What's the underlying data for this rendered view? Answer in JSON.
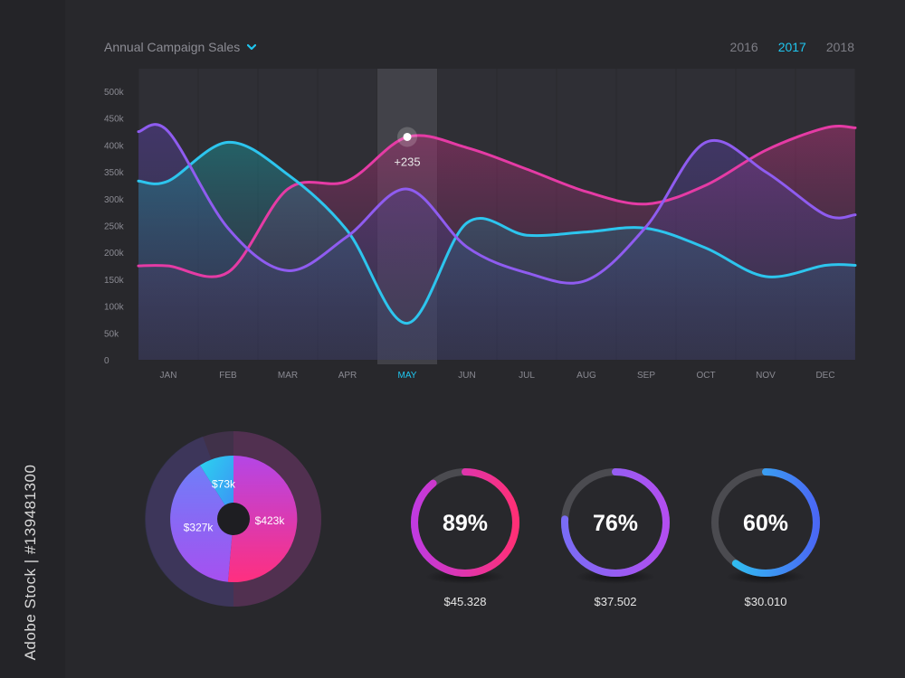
{
  "side_credit": "Adobe Stock | #139481300",
  "header": {
    "title": "Annual Campaign Sales",
    "years": [
      "2016",
      "2017",
      "2018"
    ],
    "active_year": "2017"
  },
  "colors": {
    "background": "#28282c",
    "accent": "#1fc6ef",
    "magenta": "#e53ba5",
    "purple": "#8f5cf0",
    "blue": "#3aa2f5",
    "cyan": "#2dc5ee"
  },
  "chart_data": [
    {
      "type": "line",
      "title": "Annual Campaign Sales",
      "categories": [
        "JAN",
        "FEB",
        "MAR",
        "APR",
        "MAY",
        "JUN",
        "JUL",
        "AUG",
        "SEP",
        "OCT",
        "NOV",
        "DEC"
      ],
      "y_ticks": [
        "0",
        "50k",
        "100k",
        "150k",
        "200k",
        "250k",
        "300k",
        "350k",
        "400k",
        "450k",
        "500k"
      ],
      "ylim": [
        0,
        500000
      ],
      "series": [
        {
          "color": "#e53ba5",
          "values": [
            175000,
            163000,
            318000,
            333000,
            415000,
            395000,
            355000,
            313000,
            290000,
            325000,
            390000,
            432000
          ]
        },
        {
          "color": "#2dc5ee",
          "values": [
            333000,
            405000,
            345000,
            240000,
            68000,
            255000,
            232000,
            238000,
            245000,
            208000,
            155000,
            176000
          ]
        },
        {
          "color": "#8f5cf0",
          "values": [
            425000,
            245000,
            166000,
            230000,
            318000,
            210000,
            162000,
            148000,
            248000,
            405000,
            350000,
            270000
          ]
        }
      ],
      "highlight": {
        "category": "MAY",
        "label": "+235"
      },
      "grid": false
    },
    {
      "type": "pie",
      "slices": [
        {
          "label": "$423k",
          "value": 423,
          "color": "#e53ba5"
        },
        {
          "label": "$327k",
          "value": 327,
          "color": "#8f5cf0"
        },
        {
          "label": "$73k",
          "value": 73,
          "color": "#2dc5ee"
        }
      ]
    }
  ],
  "metrics": [
    {
      "percent_label": "89%",
      "percent": 89,
      "value": "$45.328"
    },
    {
      "percent_label": "76%",
      "percent": 76,
      "value": "$37.502"
    },
    {
      "percent_label": "60%",
      "percent": 60,
      "value": "$30.010"
    }
  ]
}
